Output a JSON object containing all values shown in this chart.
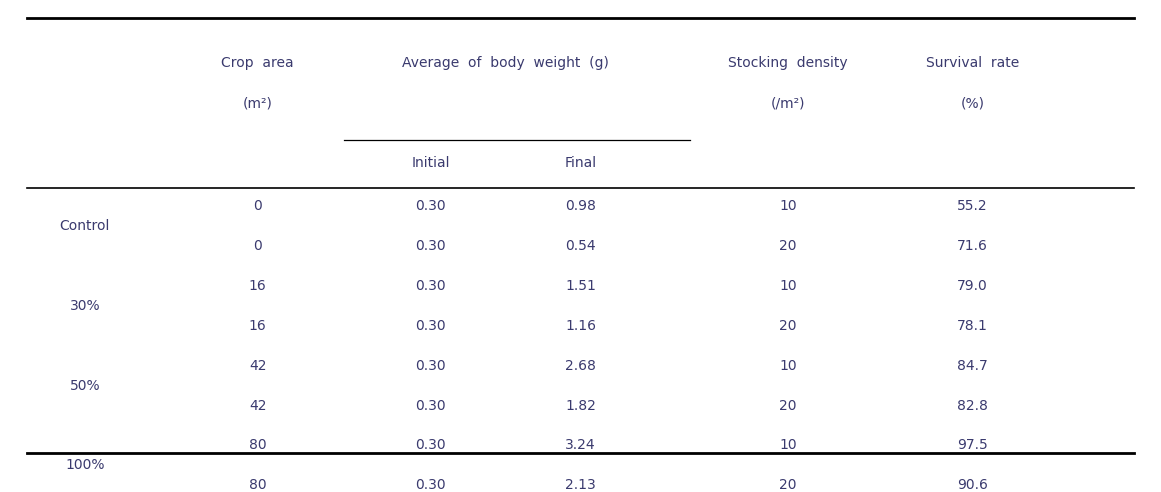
{
  "col_headers_line1": [
    "Crop area",
    "Average of body weight (g)",
    "",
    "Stocking density",
    "Survival rate"
  ],
  "col_headers_line2": [
    "(m²)",
    "",
    "",
    "(/m²)",
    "(%)"
  ],
  "col_headers_sub": [
    "",
    "Initial",
    "Final",
    "",
    ""
  ],
  "groups": [
    {
      "label": "Control",
      "rows": [
        {
          "crop_area": "0",
          "initial": "0.30",
          "final": "0.98",
          "stocking": "10",
          "survival": "55.2"
        },
        {
          "crop_area": "0",
          "initial": "0.30",
          "final": "0.54",
          "stocking": "20",
          "survival": "71.6"
        }
      ]
    },
    {
      "label": "30%",
      "rows": [
        {
          "crop_area": "16",
          "initial": "0.30",
          "final": "1.51",
          "stocking": "10",
          "survival": "79.0"
        },
        {
          "crop_area": "16",
          "initial": "0.30",
          "final": "1.16",
          "stocking": "20",
          "survival": "78.1"
        }
      ]
    },
    {
      "label": "50%",
      "rows": [
        {
          "crop_area": "42",
          "initial": "0.30",
          "final": "2.68",
          "stocking": "10",
          "survival": "84.7"
        },
        {
          "crop_area": "42",
          "initial": "0.30",
          "final": "1.82",
          "stocking": "20",
          "survival": "82.8"
        }
      ]
    },
    {
      "label": "100%",
      "rows": [
        {
          "crop_area": "80",
          "initial": "0.30",
          "final": "3.24",
          "stocking": "10",
          "survival": "97.5"
        },
        {
          "crop_area": "80",
          "initial": "0.30",
          "final": "2.13",
          "stocking": "20",
          "survival": "90.6"
        }
      ]
    }
  ],
  "font_size": 10,
  "header_font_size": 10,
  "text_color": "#3a3a6e",
  "background_color": "#ffffff"
}
